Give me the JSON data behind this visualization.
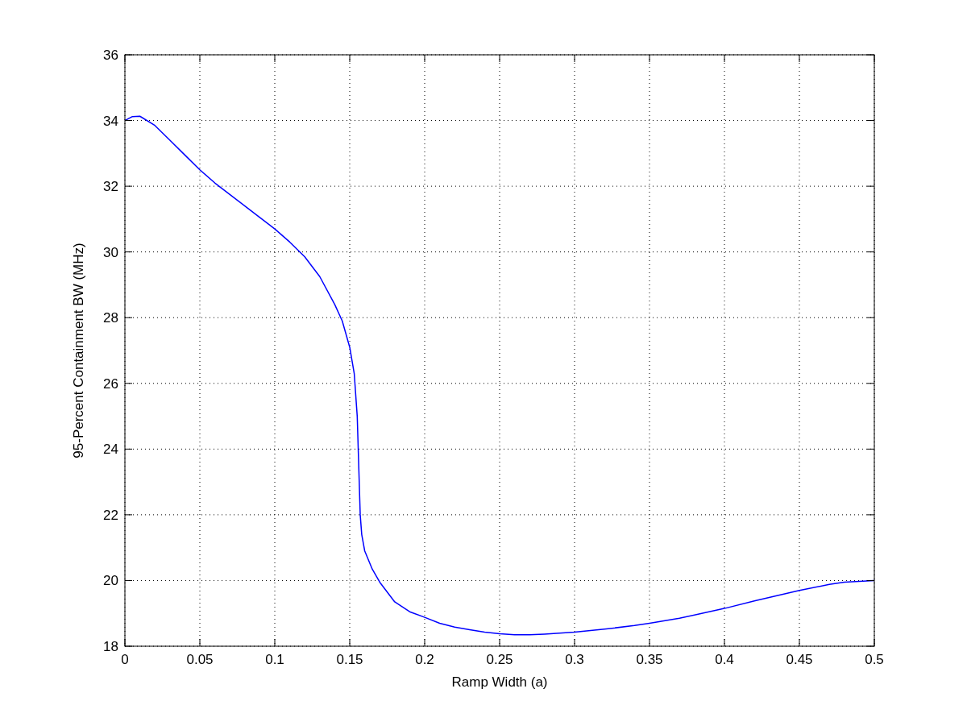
{
  "chart_data": {
    "type": "line",
    "xlabel": "Ramp Width (a)",
    "ylabel": "95-Percent Containment BW (MHz)",
    "xlim": [
      0,
      0.5
    ],
    "ylim": [
      18,
      36
    ],
    "xticks": [
      0,
      0.05,
      0.1,
      0.15,
      0.2,
      0.25,
      0.3,
      0.35,
      0.4,
      0.45,
      0.5
    ],
    "yticks": [
      18,
      20,
      22,
      24,
      26,
      28,
      30,
      32,
      34,
      36
    ],
    "grid": true,
    "marker": "none",
    "line_style": "solid",
    "series": [
      {
        "color": "#0000ff",
        "x": [
          0,
          0.005,
          0.01,
          0.02,
          0.03,
          0.04,
          0.05,
          0.06,
          0.07,
          0.08,
          0.09,
          0.1,
          0.11,
          0.12,
          0.13,
          0.14,
          0.145,
          0.15,
          0.153,
          0.155,
          0.156,
          0.157,
          0.158,
          0.16,
          0.165,
          0.17,
          0.18,
          0.19,
          0.2,
          0.21,
          0.22,
          0.23,
          0.24,
          0.25,
          0.26,
          0.27,
          0.28,
          0.29,
          0.3,
          0.32,
          0.34,
          0.35,
          0.37,
          0.4,
          0.42,
          0.45,
          0.47,
          0.48,
          0.5
        ],
        "values": [
          34.0,
          34.12,
          34.13,
          33.85,
          33.4,
          32.95,
          32.5,
          32.1,
          31.75,
          31.4,
          31.05,
          30.7,
          30.3,
          29.85,
          29.25,
          28.4,
          27.9,
          27.1,
          26.3,
          25.0,
          23.5,
          22.0,
          21.4,
          20.9,
          20.35,
          19.95,
          19.35,
          19.05,
          18.88,
          18.7,
          18.58,
          18.5,
          18.43,
          18.38,
          18.35,
          18.35,
          18.37,
          18.4,
          18.43,
          18.52,
          18.63,
          18.7,
          18.85,
          19.15,
          19.38,
          19.7,
          19.88,
          19.95,
          20.0
        ]
      }
    ]
  }
}
